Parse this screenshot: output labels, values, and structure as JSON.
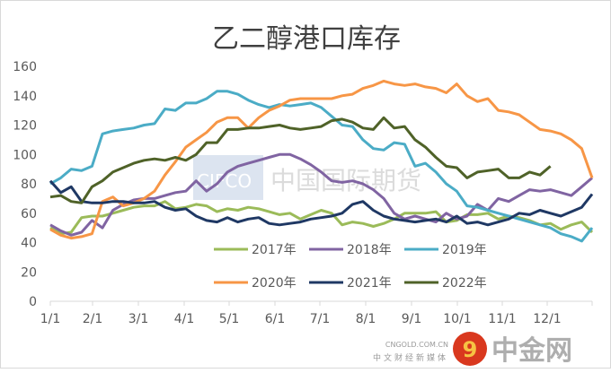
{
  "chart_data": {
    "type": "line",
    "title": "乙二醇港口库存",
    "xlabel": "",
    "ylabel": "",
    "ylim": [
      0,
      160
    ],
    "yticks": [
      "0",
      "20",
      "40",
      "60",
      "80",
      "100",
      "120",
      "140",
      "160"
    ],
    "xticks": [
      "1/1",
      "2/1",
      "3/1",
      "4/1",
      "5/1",
      "6/1",
      "7/1",
      "8/1",
      "9/1",
      "10/1",
      "11/1",
      "12/1"
    ],
    "x_unit": "week of year (0-52)",
    "grid": false,
    "legend_position": "bottom-center inside plot",
    "series": [
      {
        "name": "2017年",
        "color": "#9bbb59",
        "values": [
          50,
          46,
          47,
          57,
          58,
          58,
          60,
          62,
          64,
          65,
          65,
          68,
          63,
          64,
          66,
          65,
          61,
          63,
          62,
          64,
          63,
          61,
          59,
          60,
          56,
          59,
          62,
          60,
          52,
          54,
          53,
          51,
          53,
          56,
          60,
          60,
          60,
          61,
          54,
          55,
          59,
          59,
          60,
          56,
          58,
          57,
          55,
          52,
          53,
          49,
          52,
          54,
          47
        ]
      },
      {
        "name": "2018年",
        "color": "#8064a2",
        "values": [
          52,
          48,
          45,
          47,
          55,
          50,
          62,
          66,
          69,
          70,
          70,
          72,
          74,
          75,
          82,
          75,
          80,
          88,
          92,
          94,
          96,
          98,
          100,
          100,
          97,
          93,
          88,
          82,
          81,
          82,
          80,
          76,
          70,
          60,
          56,
          58,
          56,
          54,
          60,
          56,
          58,
          66,
          62,
          70,
          68,
          72,
          76,
          75,
          76,
          74,
          72,
          78,
          84
        ]
      },
      {
        "name": "2019年",
        "color": "#4bacc6",
        "values": [
          80,
          84,
          90,
          89,
          92,
          114,
          116,
          117,
          118,
          120,
          121,
          131,
          130,
          135,
          135,
          138,
          143,
          143,
          141,
          137,
          134,
          132,
          134,
          133,
          134,
          135,
          132,
          126,
          120,
          119,
          110,
          104,
          103,
          108,
          107,
          92,
          94,
          88,
          80,
          75,
          65,
          64,
          62,
          60,
          58,
          56,
          54,
          52,
          50,
          46,
          44,
          41,
          50
        ]
      },
      {
        "name": "2020年",
        "color": "#f79646",
        "values": [
          49,
          45,
          43,
          44,
          46,
          68,
          71,
          65,
          67,
          70,
          75,
          86,
          95,
          105,
          110,
          115,
          122,
          125,
          125,
          118,
          125,
          130,
          133,
          137,
          138,
          138,
          138,
          138,
          140,
          141,
          145,
          147,
          150,
          148,
          147,
          148,
          146,
          145,
          142,
          148,
          140,
          136,
          138,
          130,
          129,
          127,
          122,
          117,
          116,
          114,
          110,
          104,
          84
        ]
      },
      {
        "name": "2021年",
        "color": "#1f3864",
        "values": [
          82,
          74,
          78,
          68,
          67,
          67,
          68,
          68,
          67,
          67,
          68,
          64,
          62,
          63,
          58,
          55,
          54,
          57,
          54,
          56,
          57,
          53,
          52,
          53,
          54,
          56,
          57,
          58,
          60,
          66,
          68,
          62,
          58,
          56,
          55,
          54,
          55,
          56,
          54,
          58,
          53,
          54,
          52,
          54,
          56,
          60,
          59,
          62,
          60,
          58,
          61,
          64,
          73
        ]
      },
      {
        "name": "2022年",
        "color": "#4f6228",
        "values": [
          71,
          72,
          68,
          67,
          78,
          82,
          88,
          91,
          94,
          96,
          97,
          96,
          98,
          96,
          100,
          108,
          108,
          117,
          117,
          118,
          118,
          119,
          120,
          118,
          117,
          118,
          119,
          123,
          124,
          122,
          118,
          117,
          125,
          118,
          119,
          110,
          105,
          98,
          92,
          91,
          84,
          88,
          89,
          90,
          84,
          84,
          88,
          86,
          92
        ]
      }
    ]
  },
  "watermarks": {
    "cifco": "CIFCO 中国国际期货",
    "cngold_name": "中金网",
    "cngold_url": "CNGOLD.COM.CN",
    "cngold_slogan": "中文财经新媒体"
  }
}
